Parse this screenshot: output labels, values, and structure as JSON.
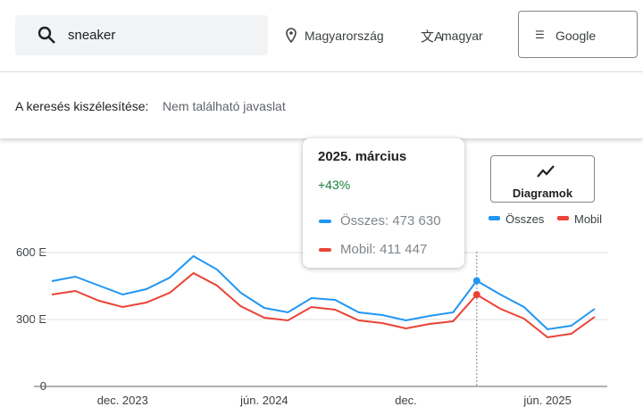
{
  "search": {
    "query": "sneaker",
    "location": "Magyarország",
    "language": "magyar",
    "engine": "Google"
  },
  "broaden": {
    "label": "A keresés kiszélesítése:",
    "value": "Nem található javaslat"
  },
  "chart_button": "Diagramok",
  "tooltip": {
    "date": "2025. március",
    "change": "+43%",
    "rows": [
      "Összes: 473 630",
      "Mobil: 411 447"
    ]
  },
  "chart_data": {
    "type": "line",
    "categories": [
      null,
      null,
      null,
      "dec. 2023",
      null,
      null,
      null,
      null,
      null,
      "jún. 2024",
      null,
      null,
      null,
      null,
      null,
      "dec.",
      null,
      null,
      null,
      null,
      null,
      "jún. 2025",
      null,
      null
    ],
    "series": [
      {
        "name": "Összes",
        "color": "#2196f3",
        "values": [
          472000,
          492000,
          452000,
          412000,
          436000,
          488000,
          584000,
          524000,
          420000,
          352000,
          332000,
          396000,
          388000,
          332000,
          320000,
          296000,
          316000,
          332000,
          473630,
          412000,
          356000,
          256000,
          272000,
          348000
        ]
      },
      {
        "name": "Mobil",
        "color": "#ea4335",
        "values": [
          412000,
          428000,
          384000,
          356000,
          376000,
          420000,
          508000,
          452000,
          360000,
          308000,
          296000,
          356000,
          344000,
          296000,
          284000,
          260000,
          280000,
          292000,
          411447,
          348000,
          304000,
          220000,
          236000,
          312000
        ]
      }
    ],
    "ylim": [
      0,
      680000
    ],
    "yticks": [
      {
        "value": 0,
        "label": "0"
      },
      {
        "value": 300000,
        "label": "300 E"
      },
      {
        "value": 600000,
        "label": "600 E"
      }
    ],
    "grid": true
  }
}
